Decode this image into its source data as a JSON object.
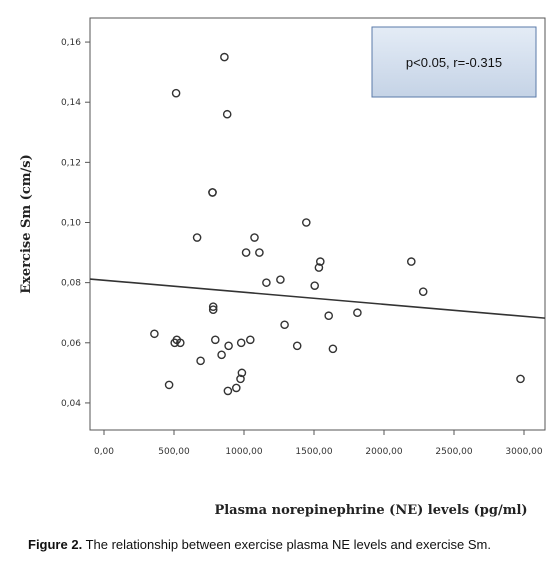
{
  "chart_data": {
    "type": "scatter",
    "title": "",
    "xlabel": "Plasma norepinephrine (NE) levels (pg/ml)",
    "ylabel": "Exercise Sm (cm/s)",
    "xlim": [
      -100,
      3150
    ],
    "ylim": [
      0.031,
      0.168
    ],
    "x_ticks": [
      0,
      500,
      1000,
      1500,
      2000,
      2500,
      3000
    ],
    "x_tick_labels": [
      "0,00",
      "500,00",
      "1000,00",
      "1500,00",
      "2000,00",
      "2500,00",
      "3000,00"
    ],
    "y_ticks": [
      0.04,
      0.06,
      0.08,
      0.1,
      0.12,
      0.14,
      0.16
    ],
    "y_tick_labels": [
      "0,04",
      "0,06",
      "0,08",
      "0,10",
      "0,12",
      "0,14",
      "0,16"
    ],
    "grid": false,
    "marker": "open-circle",
    "marker_color": "#333333",
    "line_color": "#333333",
    "points": [
      {
        "x": 860,
        "y": 0.155
      },
      {
        "x": 515,
        "y": 0.143
      },
      {
        "x": 880,
        "y": 0.136
      },
      {
        "x": 775,
        "y": 0.11
      },
      {
        "x": 775,
        "y": 0.11
      },
      {
        "x": 665,
        "y": 0.095
      },
      {
        "x": 1075,
        "y": 0.095
      },
      {
        "x": 1445,
        "y": 0.1
      },
      {
        "x": 1015,
        "y": 0.09
      },
      {
        "x": 1110,
        "y": 0.09
      },
      {
        "x": 2195,
        "y": 0.087
      },
      {
        "x": 1545,
        "y": 0.087
      },
      {
        "x": 1535,
        "y": 0.085
      },
      {
        "x": 1260,
        "y": 0.081
      },
      {
        "x": 1160,
        "y": 0.08
      },
      {
        "x": 1505,
        "y": 0.079
      },
      {
        "x": 2280,
        "y": 0.077
      },
      {
        "x": 780,
        "y": 0.072
      },
      {
        "x": 780,
        "y": 0.071
      },
      {
        "x": 1810,
        "y": 0.07
      },
      {
        "x": 1605,
        "y": 0.069
      },
      {
        "x": 1290,
        "y": 0.066
      },
      {
        "x": 360,
        "y": 0.063
      },
      {
        "x": 520,
        "y": 0.061
      },
      {
        "x": 505,
        "y": 0.06
      },
      {
        "x": 545,
        "y": 0.06
      },
      {
        "x": 795,
        "y": 0.061
      },
      {
        "x": 1045,
        "y": 0.061
      },
      {
        "x": 890,
        "y": 0.059
      },
      {
        "x": 980,
        "y": 0.06
      },
      {
        "x": 1380,
        "y": 0.059
      },
      {
        "x": 1635,
        "y": 0.058
      },
      {
        "x": 840,
        "y": 0.056
      },
      {
        "x": 690,
        "y": 0.054
      },
      {
        "x": 985,
        "y": 0.05
      },
      {
        "x": 975,
        "y": 0.048
      },
      {
        "x": 2975,
        "y": 0.048
      },
      {
        "x": 465,
        "y": 0.046
      },
      {
        "x": 885,
        "y": 0.044
      },
      {
        "x": 945,
        "y": 0.045
      }
    ],
    "fit_line": {
      "x": [
        -100,
        3150
      ],
      "y": [
        0.0812,
        0.0682
      ]
    },
    "annotation": "p<0.05, r=-0.315"
  },
  "caption": {
    "label": "Figure 2.",
    "text": " The relationship between exercise plasma NE levels and exercise Sm."
  }
}
